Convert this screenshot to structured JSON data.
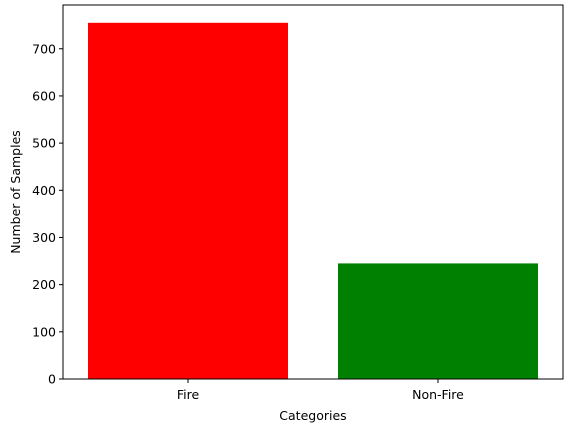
{
  "chart_data": {
    "type": "bar",
    "categories": [
      "Fire",
      "Non-Fire"
    ],
    "values": [
      755,
      245
    ],
    "colors": [
      "#ff0000",
      "#008000"
    ],
    "title": "",
    "xlabel": "Categories",
    "ylabel": "Number of Samples",
    "ylim": [
      0,
      792.75
    ],
    "yticks": [
      0,
      100,
      200,
      300,
      400,
      500,
      600,
      700
    ],
    "grid": false
  }
}
